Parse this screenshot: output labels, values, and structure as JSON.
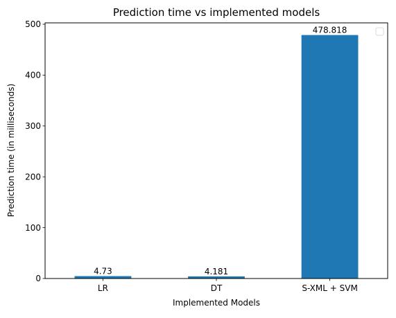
{
  "chart_data": {
    "type": "bar",
    "title": "Prediction time vs implemented models",
    "xlabel": "Implemented Models",
    "ylabel": "Prediction time (in milliseconds)",
    "categories": [
      "LR",
      "DT",
      "S-XML + SVM"
    ],
    "values": [
      4.73,
      4.181,
      478.818
    ],
    "value_labels": [
      "4.73",
      "4.181",
      "478.818"
    ],
    "ylim": [
      0,
      502.76
    ],
    "yticks": [
      0,
      100,
      200,
      300,
      400,
      500
    ],
    "grid": false,
    "legend": {
      "placement": "upper right",
      "entries": []
    },
    "bar_color": "#1f77b4"
  }
}
